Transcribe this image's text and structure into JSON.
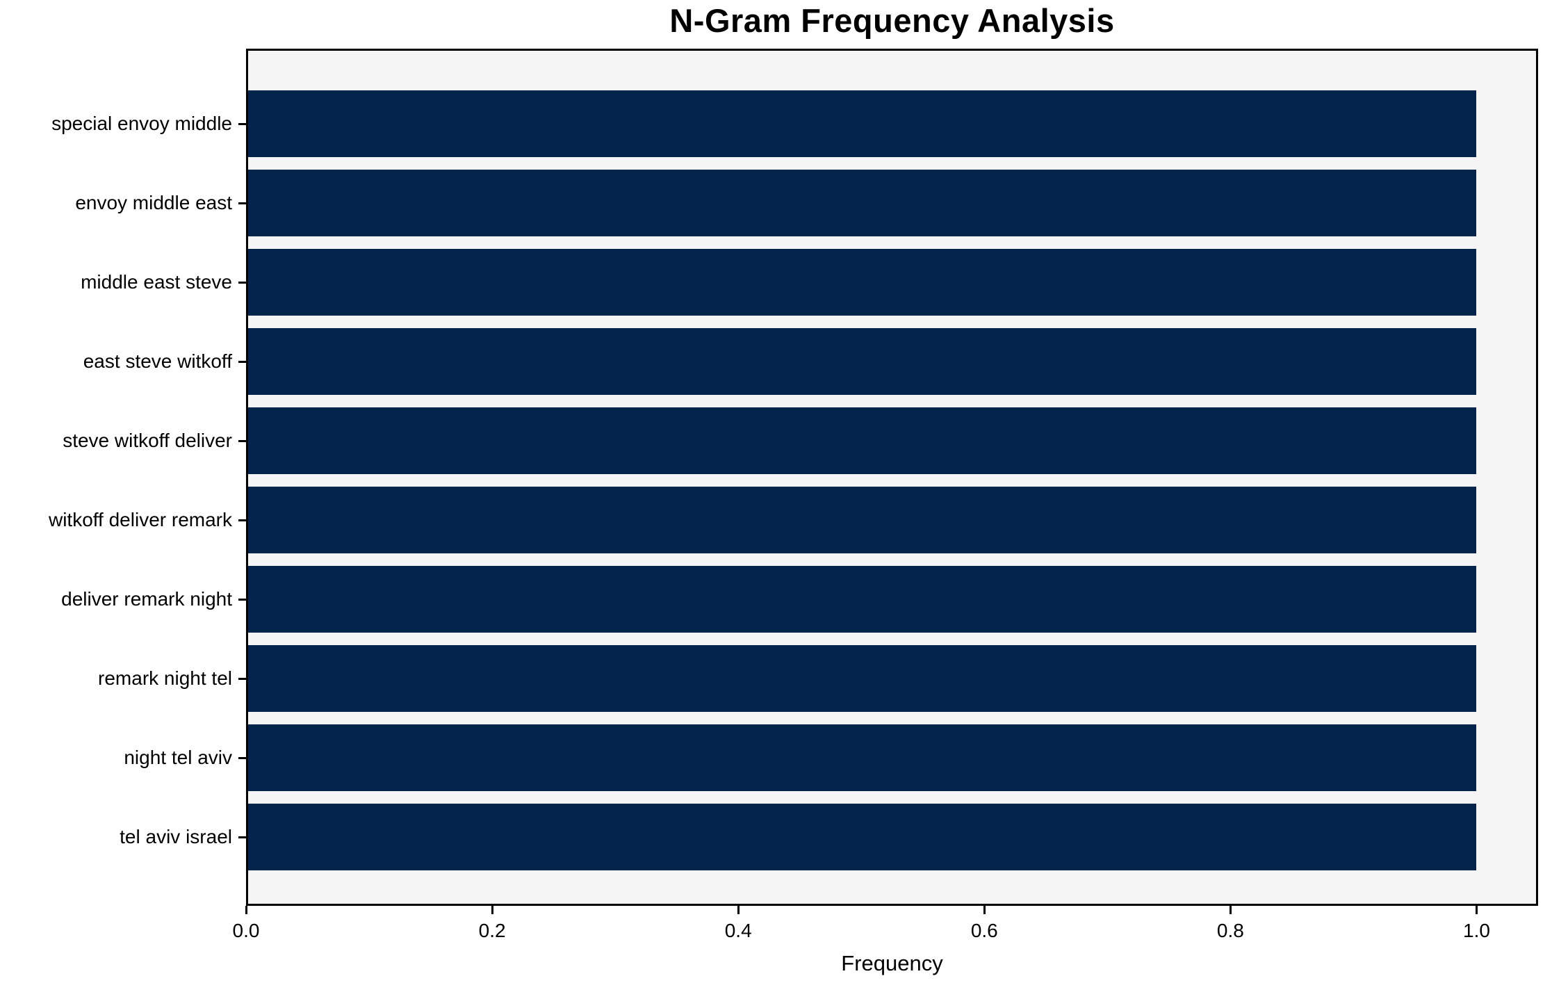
{
  "chart_data": {
    "type": "bar",
    "orientation": "horizontal",
    "title": "N-Gram Frequency Analysis",
    "xlabel": "Frequency",
    "ylabel": "",
    "categories": [
      "special envoy middle",
      "envoy middle east",
      "middle east steve",
      "east steve witkoff",
      "steve witkoff deliver",
      "witkoff deliver remark",
      "deliver remark night",
      "remark night tel",
      "night tel aviv",
      "tel aviv israel"
    ],
    "values": [
      1.0,
      1.0,
      1.0,
      1.0,
      1.0,
      1.0,
      1.0,
      1.0,
      1.0,
      1.0
    ],
    "xlim": [
      0,
      1.05
    ],
    "x_ticks": [
      "0.0",
      "0.2",
      "0.4",
      "0.6",
      "0.8",
      "1.0"
    ],
    "x_tick_values": [
      0.0,
      0.2,
      0.4,
      0.6,
      0.8,
      1.0
    ],
    "grid": false,
    "legend_position": "none",
    "colors": {
      "bar": "#02234C",
      "plot_background": "#F5F5F5",
      "figure_background": "#FFFFFF",
      "spine": "#000000",
      "text": "#000000"
    }
  }
}
